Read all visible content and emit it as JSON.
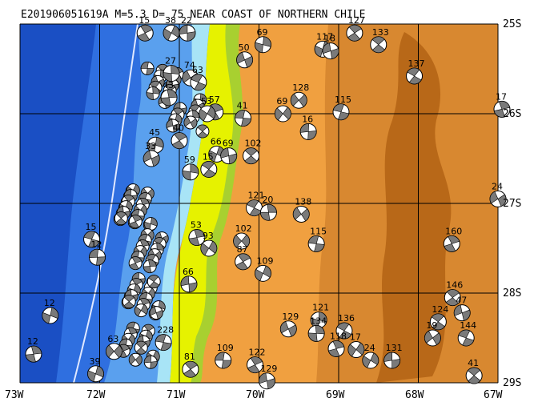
{
  "map": {
    "title": "E201906051619A M=5.3 D= 75 NEAR COAST OF NORTHERN CHILE",
    "lon_range": [
      -73,
      -67
    ],
    "lat_range": [
      -29,
      -25
    ],
    "lon_ticks": [
      "73W",
      "72W",
      "71W",
      "70W",
      "69W",
      "68W",
      "67W"
    ],
    "lat_ticks": [
      "25S",
      "26S",
      "27S",
      "28S",
      "29S"
    ],
    "colors": {
      "deep_ocean": "#1a4fc4",
      "ocean": "#2f6fe0",
      "shelf": "#5aa0ee",
      "coast_cyan": "#a8e4f6",
      "lowland_yellow": "#e6f200",
      "lowland_green": "#a8d030",
      "plain_orange": "#f0a040",
      "highland": "#d88830",
      "mountain": "#b86818",
      "trench_line": "#e0e8ff"
    }
  },
  "events": [
    {
      "depth": "15",
      "lon": -71.43,
      "lat": -25.1
    },
    {
      "depth": "38",
      "lon": -71.1,
      "lat": -25.1
    },
    {
      "depth": "22",
      "lon": -70.9,
      "lat": -25.1
    },
    {
      "depth": "127",
      "lon": -68.8,
      "lat": -25.1
    },
    {
      "depth": "117",
      "lon": -69.2,
      "lat": -25.28
    },
    {
      "depth": "18",
      "lon": -69.1,
      "lat": -25.3
    },
    {
      "depth": "133",
      "lon": -68.5,
      "lat": -25.23
    },
    {
      "depth": "69",
      "lon": -69.95,
      "lat": -25.23
    },
    {
      "depth": "50",
      "lon": -70.18,
      "lat": -25.4
    },
    {
      "depth": "137",
      "lon": -68.05,
      "lat": -25.58
    },
    {
      "depth": "27",
      "lon": -71.1,
      "lat": -25.55
    },
    {
      "depth": "74",
      "lon": -70.86,
      "lat": -25.6
    },
    {
      "depth": "63",
      "lon": -70.76,
      "lat": -25.65
    },
    {
      "depth": "43",
      "lon": -71.13,
      "lat": -25.82
    },
    {
      "depth": "128",
      "lon": -69.5,
      "lat": -25.85
    },
    {
      "depth": "115",
      "lon": -68.97,
      "lat": -25.98
    },
    {
      "depth": "17",
      "lon": -66.95,
      "lat": -25.95
    },
    {
      "depth": "69",
      "lon": -69.7,
      "lat": -26.0
    },
    {
      "depth": "41",
      "lon": -70.2,
      "lat": -26.05
    },
    {
      "depth": "57",
      "lon": -70.55,
      "lat": -25.98
    },
    {
      "depth": "53",
      "lon": -70.65,
      "lat": -26.0
    },
    {
      "depth": "16",
      "lon": -69.38,
      "lat": -26.2
    },
    {
      "depth": "40",
      "lon": -71.0,
      "lat": -26.3
    },
    {
      "depth": "66",
      "lon": -70.53,
      "lat": -26.45
    },
    {
      "depth": "69",
      "lon": -70.38,
      "lat": -26.47
    },
    {
      "depth": "102",
      "lon": -70.1,
      "lat": -26.47
    },
    {
      "depth": "45",
      "lon": -71.3,
      "lat": -26.35
    },
    {
      "depth": "33",
      "lon": -71.35,
      "lat": -26.5
    },
    {
      "depth": "15",
      "lon": -70.63,
      "lat": -26.62
    },
    {
      "depth": "59",
      "lon": -70.86,
      "lat": -26.65
    },
    {
      "depth": "24",
      "lon": -67.0,
      "lat": -26.95
    },
    {
      "depth": "121",
      "lon": -70.06,
      "lat": -27.05
    },
    {
      "depth": "20",
      "lon": -69.88,
      "lat": -27.1
    },
    {
      "depth": "138",
      "lon": -69.47,
      "lat": -27.12
    },
    {
      "depth": "15",
      "lon": -72.1,
      "lat": -27.4
    },
    {
      "depth": "53",
      "lon": -70.78,
      "lat": -27.38
    },
    {
      "depth": "102",
      "lon": -70.22,
      "lat": -27.42
    },
    {
      "depth": "115",
      "lon": -69.28,
      "lat": -27.45
    },
    {
      "depth": "160",
      "lon": -67.58,
      "lat": -27.45
    },
    {
      "depth": "93",
      "lon": -70.63,
      "lat": -27.5
    },
    {
      "depth": "12",
      "lon": -72.03,
      "lat": -27.6
    },
    {
      "depth": "87",
      "lon": -70.2,
      "lat": -27.65
    },
    {
      "depth": "109",
      "lon": -69.95,
      "lat": -27.78
    },
    {
      "depth": "66",
      "lon": -70.88,
      "lat": -27.9
    },
    {
      "depth": "146",
      "lon": -67.57,
      "lat": -28.05
    },
    {
      "depth": "12",
      "lon": -72.62,
      "lat": -28.25
    },
    {
      "depth": "47",
      "lon": -67.45,
      "lat": -28.22
    },
    {
      "depth": "124",
      "lon": -67.75,
      "lat": -28.32
    },
    {
      "depth": "121",
      "lon": -69.25,
      "lat": -28.3
    },
    {
      "depth": "129",
      "lon": -69.63,
      "lat": -28.4
    },
    {
      "depth": "136",
      "lon": -68.93,
      "lat": -28.42
    },
    {
      "depth": "134",
      "lon": -69.28,
      "lat": -28.45
    },
    {
      "depth": "19",
      "lon": -67.82,
      "lat": -28.5
    },
    {
      "depth": "144",
      "lon": -67.4,
      "lat": -28.5
    },
    {
      "depth": "12",
      "lon": -72.83,
      "lat": -28.68
    },
    {
      "depth": "63",
      "lon": -71.82,
      "lat": -28.65
    },
    {
      "depth": "228",
      "lon": -71.2,
      "lat": -28.55
    },
    {
      "depth": "118",
      "lon": -69.03,
      "lat": -28.62
    },
    {
      "depth": "17",
      "lon": -68.78,
      "lat": -28.63
    },
    {
      "depth": "109",
      "lon": -70.45,
      "lat": -28.75
    },
    {
      "depth": "122",
      "lon": -70.05,
      "lat": -28.8
    },
    {
      "depth": "24",
      "lon": -68.6,
      "lat": -28.75
    },
    {
      "depth": "131",
      "lon": -68.33,
      "lat": -28.75
    },
    {
      "depth": "81",
      "lon": -70.86,
      "lat": -28.85
    },
    {
      "depth": "39",
      "lon": -72.05,
      "lat": -28.9
    },
    {
      "depth": "129",
      "lon": -69.9,
      "lat": -28.98
    },
    {
      "depth": "41",
      "lon": -67.3,
      "lat": -28.92
    }
  ],
  "clusters": [
    {
      "lon": -71.2,
      "lat": -25.7,
      "n": 12
    },
    {
      "lon": -70.9,
      "lat": -26.0,
      "n": 10
    },
    {
      "lon": -71.55,
      "lat": -27.05,
      "n": 22
    },
    {
      "lon": -71.35,
      "lat": -27.55,
      "n": 12
    },
    {
      "lon": -71.45,
      "lat": -28.05,
      "n": 18
    },
    {
      "lon": -71.5,
      "lat": -28.6,
      "n": 12
    }
  ]
}
